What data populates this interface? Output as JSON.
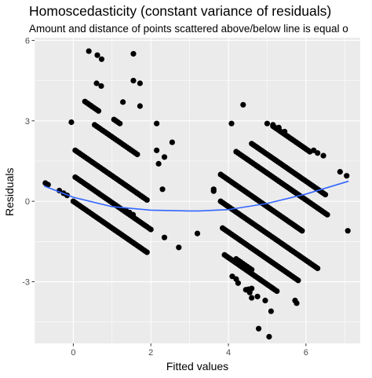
{
  "chart_data": {
    "type": "scatter",
    "title": "Homoscedasticity (constant variance of residuals)",
    "subtitle": "Amount and distance of points scattered above/below line is equal o",
    "xlabel": "Fitted values",
    "ylabel": "Residuals",
    "xlim": [
      -1.0,
      7.4
    ],
    "ylim": [
      -5.3,
      6.1
    ],
    "x_ticks": [
      0,
      2,
      4,
      6
    ],
    "y_ticks": [
      -3,
      0,
      3,
      6
    ],
    "grid": true,
    "legend": "none",
    "colors": {
      "panel": "#ebebeb",
      "grid": "#ffffff",
      "points": "#000000",
      "smooth": "#3366ff"
    },
    "points": [
      [
        -0.72,
        0.68
      ],
      [
        -0.65,
        0.62
      ],
      [
        -0.36,
        0.4
      ],
      [
        -0.25,
        0.3
      ],
      [
        -0.16,
        0.22
      ],
      [
        1.36,
        -0.35
      ],
      [
        1.45,
        -0.42
      ],
      [
        1.54,
        -0.5
      ],
      [
        2.55,
        2.2
      ],
      [
        2.72,
        -1.72
      ],
      [
        2.35,
        -1.35
      ],
      [
        2.3,
        0.45
      ],
      [
        2.35,
        1.65
      ],
      [
        2.15,
        2.9
      ],
      [
        2.15,
        1.9
      ],
      [
        2.2,
        1.4
      ],
      [
        -0.05,
        2.95
      ],
      [
        0.4,
        5.6
      ],
      [
        0.6,
        4.4
      ],
      [
        0.72,
        4.3
      ],
      [
        0.62,
        5.45
      ],
      [
        0.73,
        5.3
      ],
      [
        1.55,
        5.5
      ],
      [
        1.55,
        4.5
      ],
      [
        1.72,
        4.4
      ],
      [
        1.72,
        3.55
      ],
      [
        1.28,
        3.7
      ],
      [
        3.2,
        -1.2
      ],
      [
        3.62,
        0.45
      ],
      [
        3.62,
        0.38
      ],
      [
        4.08,
        2.9
      ],
      [
        4.38,
        3.6
      ],
      [
        4.45,
        -3.3
      ],
      [
        4.6,
        -3.6
      ],
      [
        4.75,
        -3.55
      ],
      [
        4.52,
        -3.28
      ],
      [
        4.55,
        -3.4
      ],
      [
        4.1,
        -2.8
      ],
      [
        4.2,
        -2.9
      ],
      [
        4.25,
        -3.05
      ],
      [
        4.6,
        -3.25
      ],
      [
        4.95,
        -3.7
      ],
      [
        5.1,
        -4.1
      ],
      [
        5.05,
        -5.05
      ],
      [
        4.78,
        -4.75
      ],
      [
        5.72,
        -3.7
      ],
      [
        5.76,
        -3.8
      ],
      [
        5.0,
        2.9
      ],
      [
        5.15,
        2.85
      ],
      [
        5.3,
        2.75
      ],
      [
        5.45,
        2.6
      ],
      [
        6.2,
        1.9
      ],
      [
        6.3,
        1.8
      ],
      [
        6.45,
        1.7
      ],
      [
        6.88,
        1.1
      ],
      [
        7.05,
        0.95
      ],
      [
        7.08,
        -1.1
      ]
    ],
    "bands": [
      {
        "x": [
          0.0,
          1.9
        ],
        "y0": 0.0,
        "slope": -1.0,
        "n": 42
      },
      {
        "x": [
          0.05,
          2.0
        ],
        "y0": 0.9,
        "slope": -1.0,
        "n": 38
      },
      {
        "x": [
          0.05,
          1.9
        ],
        "y0": 1.9,
        "slope": -1.0,
        "n": 38
      },
      {
        "x": [
          0.55,
          1.65
        ],
        "y0": 2.85,
        "slope": -1.0,
        "n": 22
      },
      {
        "x": [
          0.3,
          0.65
        ],
        "y0": 3.72,
        "slope": -1.0,
        "n": 8
      },
      {
        "x": [
          1.05,
          1.2
        ],
        "y0": 3.05,
        "slope": -1.0,
        "n": 4
      },
      {
        "x": [
          3.8,
          5.9
        ],
        "y0": 1.0,
        "slope": -1.0,
        "n": 46
      },
      {
        "x": [
          3.8,
          6.3
        ],
        "y0": 0.0,
        "slope": -1.0,
        "n": 52
      },
      {
        "x": [
          3.85,
          5.8
        ],
        "y0": -1.0,
        "slope": -1.0,
        "n": 42
      },
      {
        "x": [
          3.9,
          5.25
        ],
        "y0": -2.0,
        "slope": -1.0,
        "n": 30
      },
      {
        "x": [
          4.2,
          6.55
        ],
        "y0": 1.85,
        "slope": -1.0,
        "n": 50
      },
      {
        "x": [
          4.6,
          6.5
        ],
        "y0": 2.15,
        "slope": -1.0,
        "n": 40
      },
      {
        "x": [
          5.15,
          6.1
        ],
        "y0": 2.8,
        "slope": -1.0,
        "n": 22
      },
      {
        "x": [
          4.2,
          4.6
        ],
        "y0": -2.15,
        "slope": -1.0,
        "n": 8
      }
    ],
    "smooth_curve": {
      "x": [
        -0.75,
        0.0,
        1.0,
        2.0,
        3.0,
        3.25,
        4.0,
        5.0,
        6.0,
        7.1
      ],
      "y": [
        0.57,
        0.15,
        -0.2,
        -0.33,
        -0.36,
        -0.36,
        -0.31,
        -0.08,
        0.27,
        0.75
      ]
    }
  }
}
